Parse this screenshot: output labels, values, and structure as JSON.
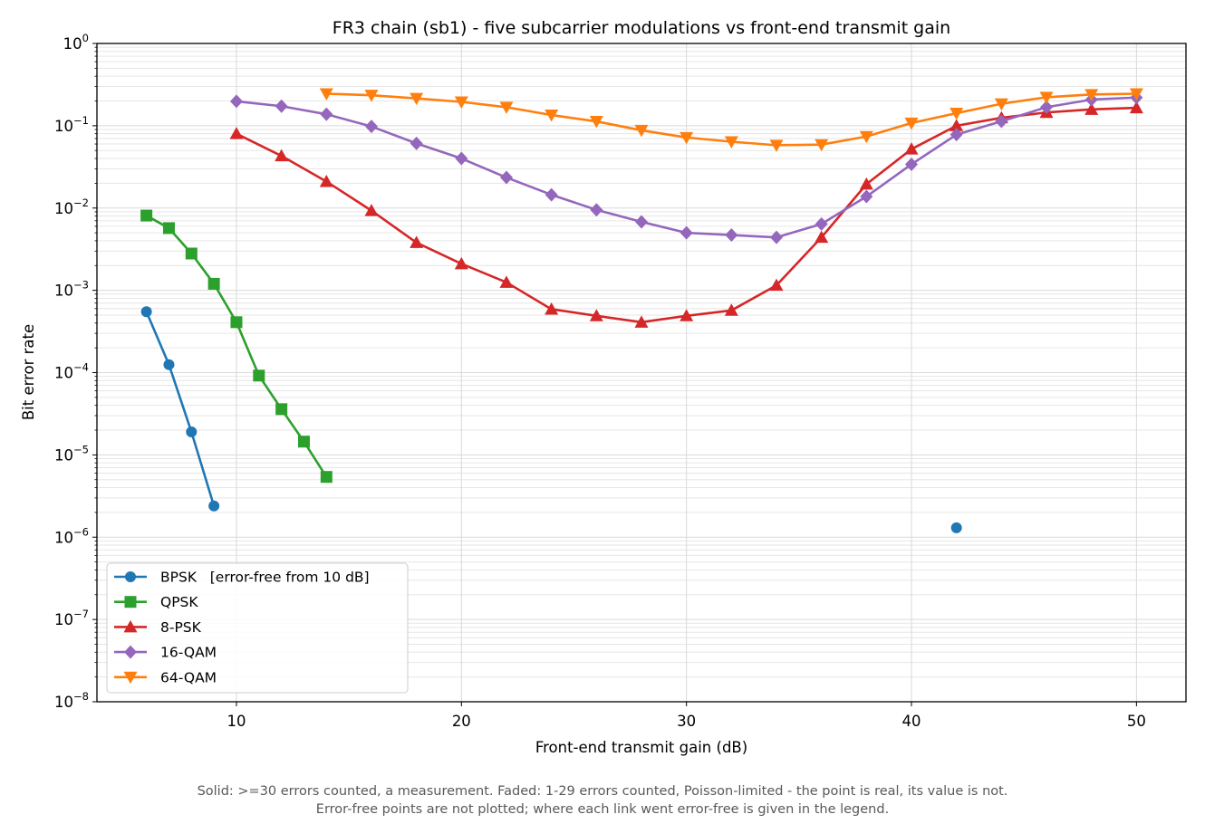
{
  "chart_data": {
    "type": "line",
    "title": "FR3 chain (sb1) - five subcarrier modulations vs front-end transmit gain",
    "xlabel": "Front-end transmit gain (dB)",
    "ylabel": "Bit error rate",
    "xlim": [
      3.8,
      52.2
    ],
    "ylim": [
      1e-08,
      1
    ],
    "yscale": "log",
    "xticks": [
      10,
      20,
      30,
      40,
      50
    ],
    "yticks": [
      {
        "value": 1,
        "mantissa": "10",
        "exp": "0"
      },
      {
        "value": 0.1,
        "mantissa": "10",
        "exp": "−1"
      },
      {
        "value": 0.01,
        "mantissa": "10",
        "exp": "−2"
      },
      {
        "value": 0.001,
        "mantissa": "10",
        "exp": "−3"
      },
      {
        "value": 0.0001,
        "mantissa": "10",
        "exp": "−4"
      },
      {
        "value": 1e-05,
        "mantissa": "10",
        "exp": "−5"
      },
      {
        "value": 1e-06,
        "mantissa": "10",
        "exp": "−6"
      },
      {
        "value": 1e-07,
        "mantissa": "10",
        "exp": "−7"
      },
      {
        "value": 1e-08,
        "mantissa": "10",
        "exp": "−8"
      }
    ],
    "grid": true,
    "legend_position": "lower-left",
    "series": [
      {
        "name": "BPSK   [error-free from 10 dB]",
        "color": "#1f77b4",
        "marker": "circle",
        "segments": [
          [
            [
              6,
              0.00055
            ],
            [
              7,
              0.000125
            ],
            [
              8,
              1.9e-05
            ],
            [
              9,
              2.4e-06
            ]
          ],
          [
            [
              42,
              1.3e-06
            ]
          ]
        ]
      },
      {
        "name": "QPSK",
        "color": "#2ca02c",
        "marker": "square",
        "segments": [
          [
            [
              6,
              0.0081
            ],
            [
              7,
              0.0057
            ],
            [
              8,
              0.0028
            ],
            [
              9,
              0.0012
            ],
            [
              10,
              0.00041
            ],
            [
              11,
              9.2e-05
            ],
            [
              12,
              3.6e-05
            ],
            [
              13,
              1.45e-05
            ],
            [
              14,
              5.4e-06
            ]
          ]
        ]
      },
      {
        "name": "8-PSK",
        "color": "#d62728",
        "marker": "triangle-up",
        "segments": [
          [
            [
              10,
              0.08
            ],
            [
              12,
              0.043
            ],
            [
              14,
              0.021
            ],
            [
              16,
              0.0093
            ],
            [
              18,
              0.0038
            ],
            [
              20,
              0.0021
            ],
            [
              22,
              0.00125
            ],
            [
              24,
              0.00059
            ],
            [
              26,
              0.00049
            ],
            [
              28,
              0.00041
            ],
            [
              30,
              0.00049
            ],
            [
              32,
              0.00057
            ],
            [
              34,
              0.00115
            ],
            [
              36,
              0.0044
            ],
            [
              38,
              0.0195
            ],
            [
              40,
              0.052
            ],
            [
              42,
              0.1
            ],
            [
              44,
              0.125
            ],
            [
              46,
              0.145
            ],
            [
              48,
              0.158
            ],
            [
              50,
              0.165
            ]
          ]
        ]
      },
      {
        "name": "16-QAM",
        "color": "#9467bd",
        "marker": "diamond",
        "segments": [
          [
            [
              10,
              0.198
            ],
            [
              12,
              0.173
            ],
            [
              14,
              0.138
            ],
            [
              16,
              0.098
            ],
            [
              18,
              0.061
            ],
            [
              20,
              0.04
            ],
            [
              22,
              0.0235
            ],
            [
              24,
              0.0145
            ],
            [
              26,
              0.0095
            ],
            [
              28,
              0.0068
            ],
            [
              30,
              0.005
            ],
            [
              32,
              0.0047
            ],
            [
              34,
              0.0044
            ],
            [
              36,
              0.0064
            ],
            [
              38,
              0.0138
            ],
            [
              40,
              0.034
            ],
            [
              42,
              0.078
            ],
            [
              44,
              0.113
            ],
            [
              46,
              0.168
            ],
            [
              48,
              0.208
            ],
            [
              50,
              0.22
            ]
          ]
        ]
      },
      {
        "name": "64-QAM",
        "color": "#ff7f0e",
        "marker": "triangle-down",
        "segments": [
          [
            [
              14,
              0.245
            ],
            [
              16,
              0.235
            ],
            [
              18,
              0.215
            ],
            [
              20,
              0.195
            ],
            [
              22,
              0.168
            ],
            [
              24,
              0.135
            ],
            [
              26,
              0.113
            ],
            [
              28,
              0.088
            ],
            [
              30,
              0.072
            ],
            [
              32,
              0.064
            ],
            [
              34,
              0.058
            ],
            [
              36,
              0.059
            ],
            [
              38,
              0.074
            ],
            [
              40,
              0.108
            ],
            [
              42,
              0.142
            ],
            [
              44,
              0.185
            ],
            [
              46,
              0.222
            ],
            [
              48,
              0.24
            ],
            [
              50,
              0.245
            ]
          ]
        ]
      }
    ]
  },
  "caption": {
    "line1": "Solid: >=30 errors counted, a measurement.   Faded: 1-29 errors counted, Poisson-limited - the point is real, its value is not.",
    "line2": "Error-free points are not plotted; where each link went error-free is given in the legend."
  }
}
